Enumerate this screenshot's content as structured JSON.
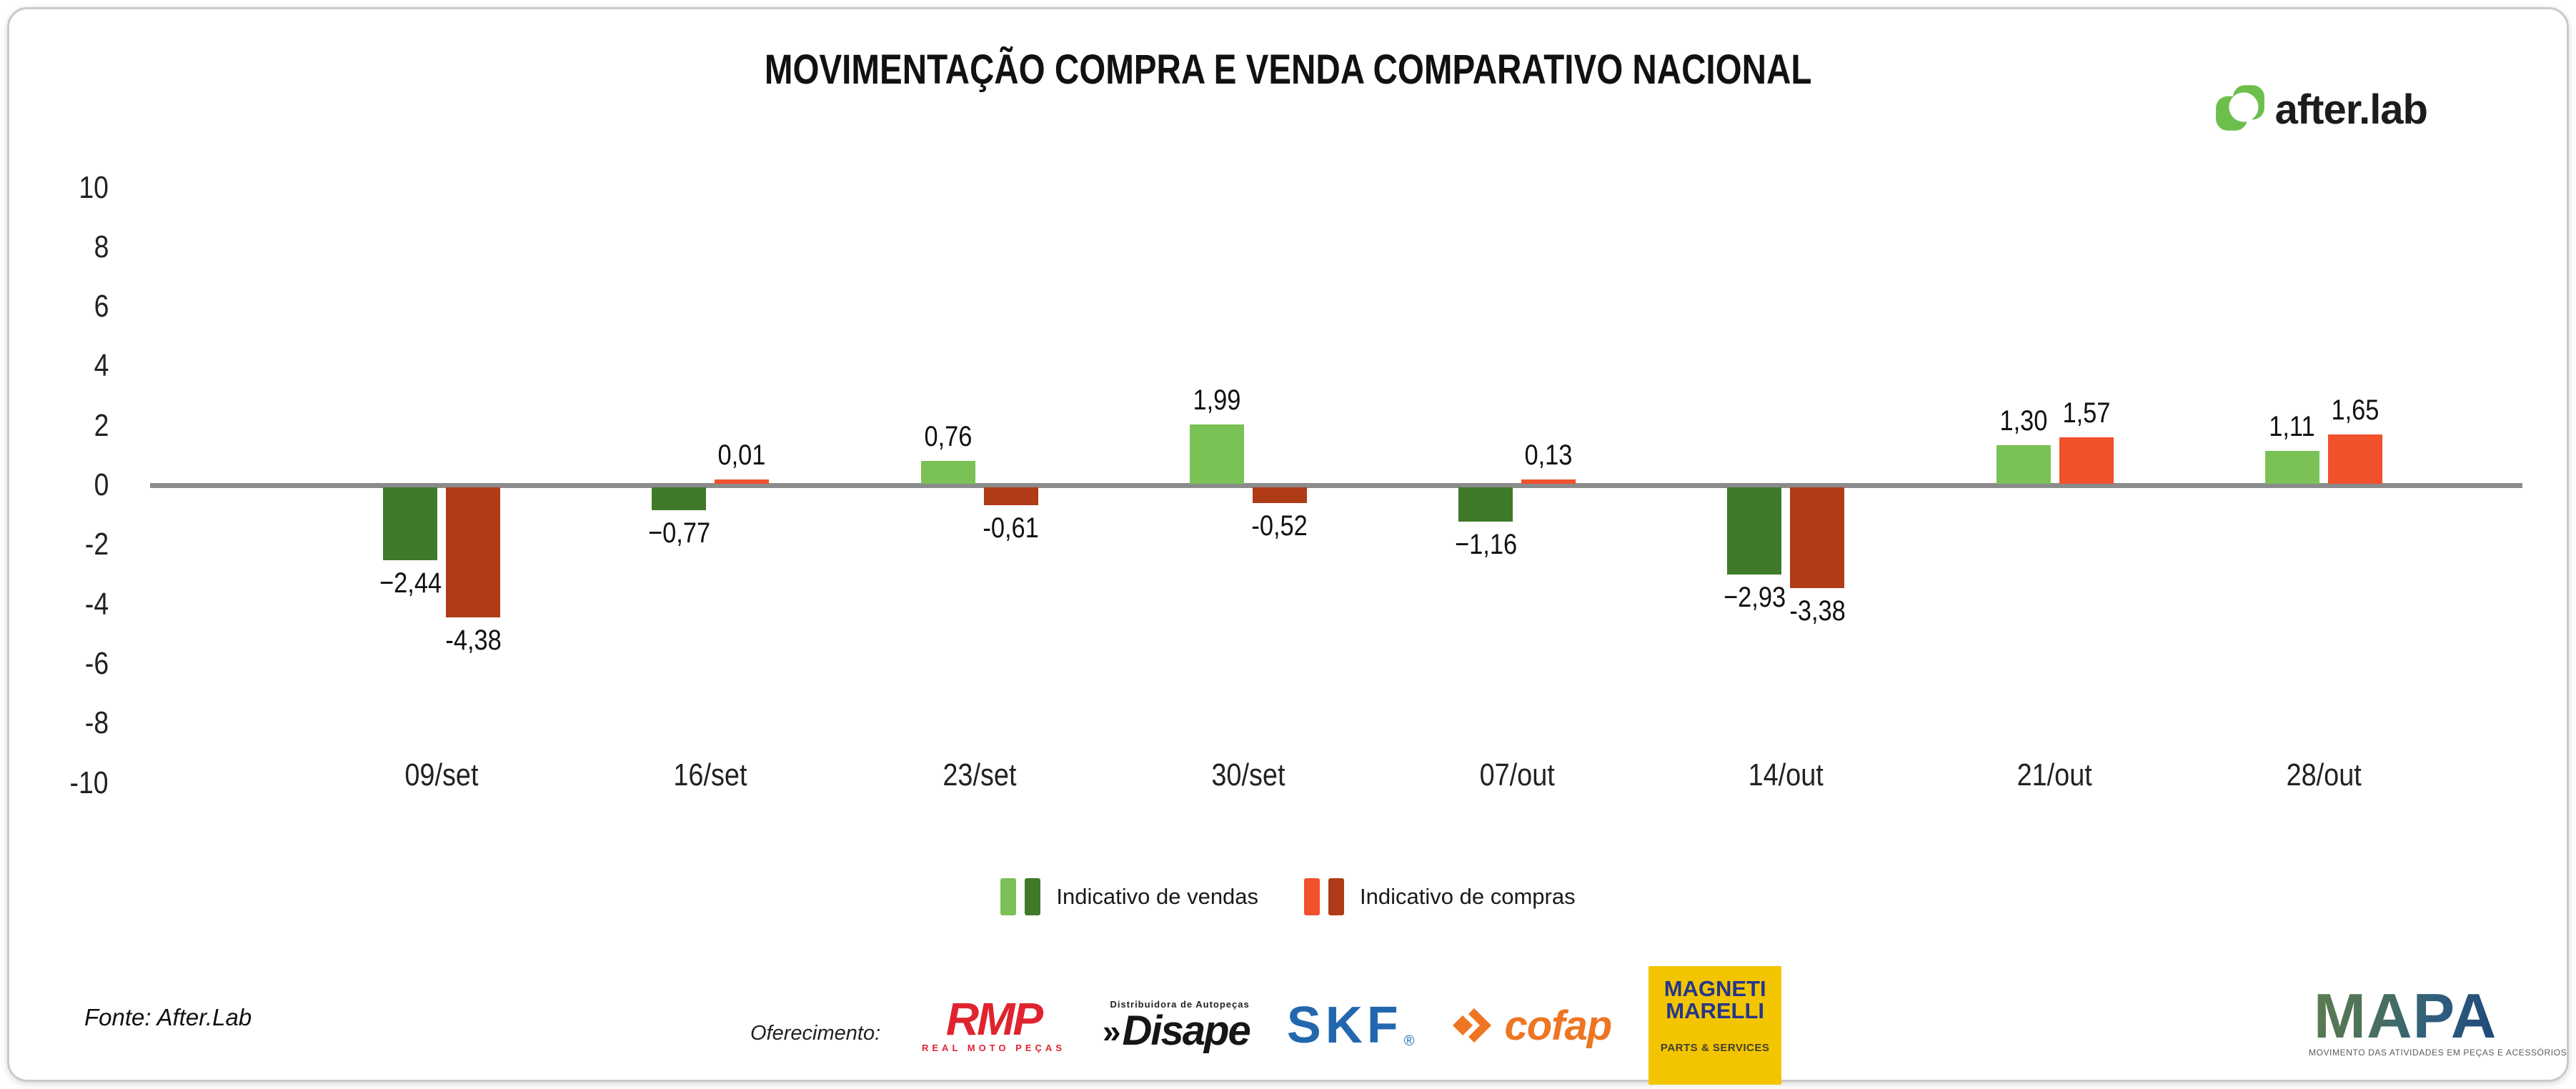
{
  "header": {
    "title": "MOVIMENTAÇÃO COMPRA E VENDA COMPARATIVO NACIONAL",
    "brand": "after.lab"
  },
  "chart_data": {
    "type": "bar",
    "title": "MOVIMENTAÇÃO COMPRA E VENDA COMPARATIVO NACIONAL",
    "categories": [
      "09/set",
      "16/set",
      "23/set",
      "30/set",
      "07/out",
      "14/out",
      "21/out",
      "28/out"
    ],
    "series": [
      {
        "name": "Indicativo de vendas",
        "values": [
          -2.44,
          -0.77,
          0.76,
          1.99,
          -1.16,
          -2.93,
          1.3,
          1.11
        ],
        "labels": [
          "−2,44",
          "−0,77",
          "0,76",
          "1,99",
          "−1,16",
          "−2,93",
          "1,30",
          "1,11"
        ],
        "color_positive": "#7AC255",
        "color_negative": "#3E7A2A"
      },
      {
        "name": "Indicativo de compras",
        "values": [
          -4.38,
          0.01,
          -0.61,
          -0.52,
          0.13,
          -3.38,
          1.57,
          1.65
        ],
        "labels": [
          "-4,38",
          "0,01",
          "-0,61",
          "-0,52",
          "0,13",
          "-3,38",
          "1,57",
          "1,65"
        ],
        "color_positive": "#F1512B",
        "color_negative": "#AF3B17"
      }
    ],
    "xlabel": "",
    "ylabel": "",
    "ylim": [
      -10,
      10
    ],
    "ytick_step": 2,
    "yticks": [
      "10",
      "8",
      "6",
      "4",
      "2",
      "0",
      "-2",
      "-4",
      "-6",
      "-8",
      "-10"
    ],
    "grid": false,
    "legend_position": "bottom",
    "axis_color": "#8B8B8B"
  },
  "footer": {
    "fonte": "Fonte: After.Lab",
    "oferecimento": "Oferecimento:",
    "sponsors": {
      "rmp": {
        "name": "RMP",
        "sub": "REAL MOTO PEÇAS"
      },
      "disape": {
        "top": "Distribuidora de Autopeças",
        "chevrons": "»",
        "name": "Disape"
      },
      "skf": {
        "name": "SKF",
        "reg": "®"
      },
      "cofap": {
        "name": "cofap"
      },
      "magneti": {
        "line1": "MAGNETI",
        "line2": "MARELLI",
        "sub": "PARTS & SERVICES"
      },
      "mapa": {
        "name": "MAPA",
        "sub": "MOVIMENTO DAS ATIVIDADES EM PEÇAS E ACESSÓRIOS"
      }
    }
  }
}
